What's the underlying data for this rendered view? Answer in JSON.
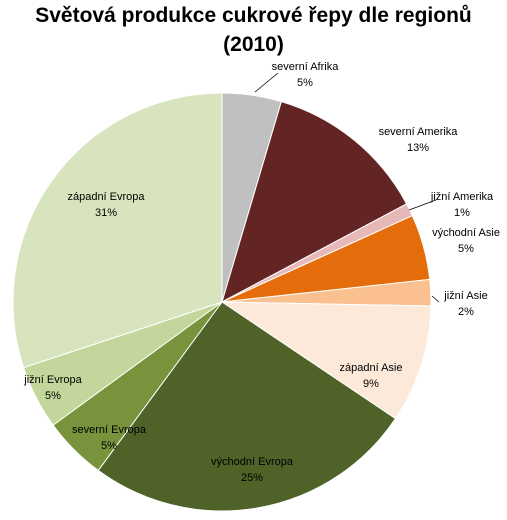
{
  "chart_data": {
    "type": "pie",
    "title_line_1": "Světová produkce cukrové řepy dle regionů",
    "title_line_2": "(2010)",
    "slices": [
      {
        "name": "severní Afrika",
        "value": 5,
        "label": "5%",
        "color": "#c0c0c0"
      },
      {
        "name": "severní Amerika",
        "value": 13,
        "label": "13%",
        "color": "#632523"
      },
      {
        "name": "jižní Amerika",
        "value": 1,
        "label": "1%",
        "color": "#e6b9b8"
      },
      {
        "name": "východní Asie",
        "value": 5,
        "label": "5%",
        "color": "#e46c0a"
      },
      {
        "name": "jižní Asie",
        "value": 2,
        "label": "2%",
        "color": "#fac090"
      },
      {
        "name": "západní Asie",
        "value": 9,
        "label": "9%",
        "color": "#fde9d9"
      },
      {
        "name": "východní Evropa",
        "value": 25,
        "label": "25%",
        "color": "#4f6228"
      },
      {
        "name": "severní Evropa",
        "value": 5,
        "label": "5%",
        "color": "#77933c"
      },
      {
        "name": "jižní Evropa",
        "value": 5,
        "label": "5%",
        "color": "#c3d69b"
      },
      {
        "name": "západní  Evropa",
        "value": 31,
        "label": "31%",
        "color": "#d7e4bd"
      }
    ]
  }
}
